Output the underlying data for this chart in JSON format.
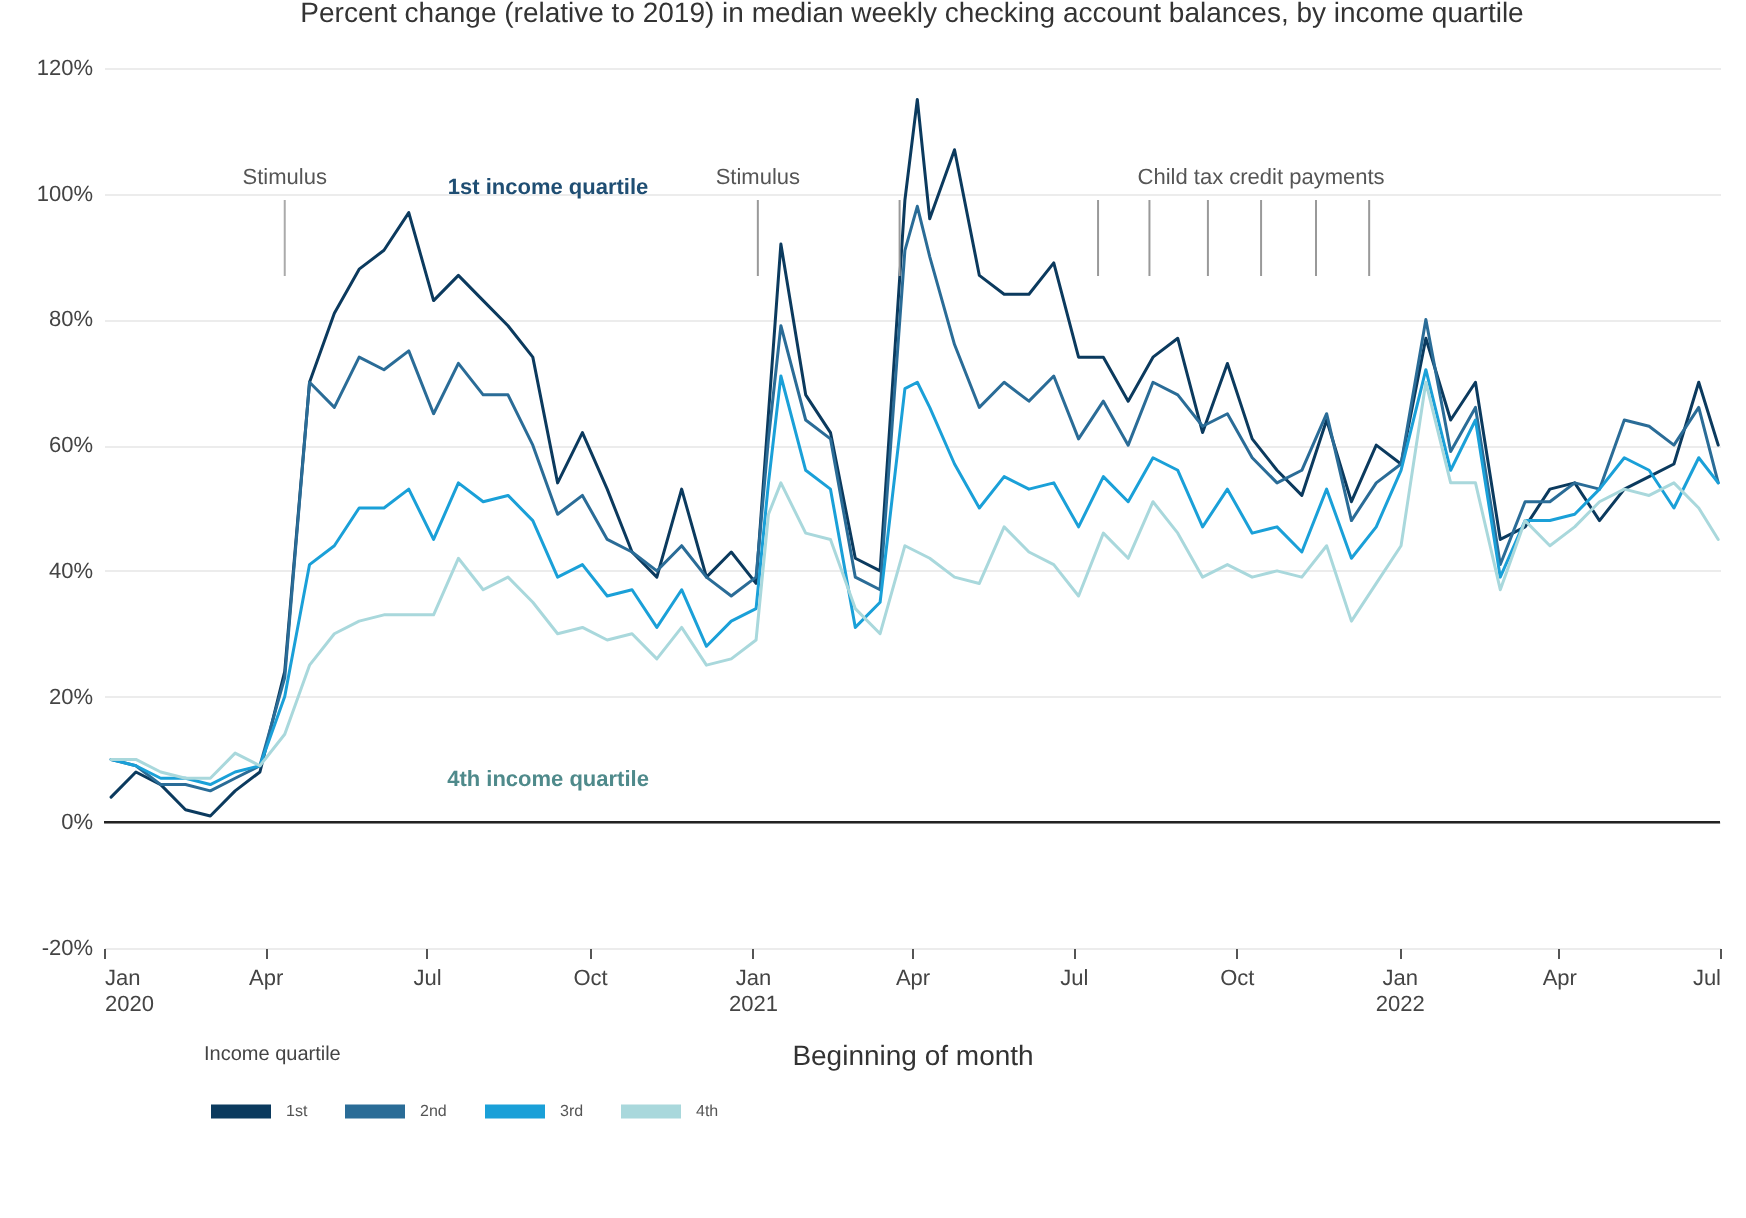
{
  "chart_data": {
    "type": "line",
    "title": "Percent change (relative to 2019) in median weekly checking account balances, by income quartile",
    "xlabel": "Beginning of month",
    "legend_title": "Income quartile",
    "legend": "bottom left",
    "grid": "y",
    "x": [
      "2020-01-05",
      "2020-01-19",
      "2020-02-02",
      "2020-02-16",
      "2020-03-01",
      "2020-03-15",
      "2020-03-29",
      "2020-04-12",
      "2020-04-26",
      "2020-05-10",
      "2020-05-24",
      "2020-06-07",
      "2020-06-21",
      "2020-07-05",
      "2020-07-19",
      "2020-08-02",
      "2020-08-16",
      "2020-08-30",
      "2020-09-13",
      "2020-09-27",
      "2020-10-11",
      "2020-10-25",
      "2020-11-08",
      "2020-11-22",
      "2020-12-06",
      "2020-12-20",
      "2021-01-03",
      "2021-01-10",
      "2021-01-17",
      "2021-01-31",
      "2021-02-14",
      "2021-02-28",
      "2021-03-14",
      "2021-03-28",
      "2021-04-04",
      "2021-04-11",
      "2021-04-25",
      "2021-05-09",
      "2021-05-23",
      "2021-06-06",
      "2021-06-20",
      "2021-07-04",
      "2021-07-18",
      "2021-08-01",
      "2021-08-15",
      "2021-08-29",
      "2021-09-12",
      "2021-09-26",
      "2021-10-10",
      "2021-10-24",
      "2021-11-07",
      "2021-11-21",
      "2021-12-05",
      "2021-12-19",
      "2022-01-02",
      "2022-01-16",
      "2022-01-30",
      "2022-02-13",
      "2022-02-27",
      "2022-03-13",
      "2022-03-27",
      "2022-04-10",
      "2022-04-24",
      "2022-05-08",
      "2022-05-22",
      "2022-06-05",
      "2022-06-19",
      "2022-06-30"
    ],
    "series": [
      {
        "name": "1st",
        "color": "#0b3a5e",
        "values": [
          4,
          8,
          6,
          2,
          1,
          5,
          8,
          24,
          70,
          81,
          88,
          91,
          97,
          83,
          87,
          83,
          79,
          74,
          54,
          62,
          53,
          43,
          39,
          53,
          39,
          43,
          38,
          65,
          92,
          68,
          62,
          42,
          40,
          99,
          115,
          96,
          107,
          87,
          84,
          84,
          89,
          74,
          74,
          67,
          74,
          77,
          62,
          73,
          61,
          56,
          52,
          64,
          51,
          60,
          57,
          77,
          64,
          70,
          45,
          47,
          53,
          54,
          48,
          53,
          55,
          57,
          70,
          60
        ]
      },
      {
        "name": "2nd",
        "color": "#2a6c97",
        "values": [
          10,
          9,
          6,
          6,
          5,
          7,
          9,
          23,
          70,
          66,
          74,
          72,
          75,
          65,
          73,
          68,
          68,
          60,
          49,
          52,
          45,
          43,
          40,
          44,
          39,
          36,
          39,
          61,
          79,
          64,
          61,
          39,
          37,
          91,
          98,
          90,
          76,
          66,
          70,
          67,
          71,
          61,
          67,
          60,
          70,
          68,
          63,
          65,
          58,
          54,
          56,
          65,
          48,
          54,
          57,
          80,
          59,
          66,
          41,
          51,
          51,
          54,
          53,
          64,
          63,
          60,
          66,
          54
        ]
      },
      {
        "name": "3rd",
        "color": "#1aa0d8",
        "values": [
          10,
          9,
          7,
          7,
          6,
          8,
          9,
          20,
          41,
          44,
          50,
          50,
          53,
          45,
          54,
          51,
          52,
          48,
          39,
          41,
          36,
          37,
          31,
          37,
          28,
          32,
          34,
          54,
          71,
          56,
          53,
          31,
          35,
          69,
          70,
          66,
          57,
          50,
          55,
          53,
          54,
          47,
          55,
          51,
          58,
          56,
          47,
          53,
          46,
          47,
          43,
          53,
          42,
          47,
          56,
          72,
          56,
          64,
          39,
          48,
          48,
          49,
          53,
          58,
          56,
          50,
          58,
          54
        ]
      },
      {
        "name": "4th",
        "color": "#a9d8dc",
        "values": [
          10,
          10,
          8,
          7,
          7,
          11,
          9,
          14,
          25,
          30,
          32,
          33,
          33,
          33,
          42,
          37,
          39,
          35,
          30,
          31,
          29,
          30,
          26,
          31,
          25,
          26,
          29,
          49,
          54,
          46,
          45,
          34,
          30,
          44,
          43,
          42,
          39,
          38,
          47,
          43,
          41,
          36,
          46,
          42,
          51,
          46,
          39,
          41,
          39,
          40,
          39,
          44,
          32,
          38,
          44,
          70,
          54,
          54,
          37,
          48,
          44,
          47,
          51,
          53,
          52,
          54,
          50,
          45
        ]
      }
    ],
    "xlim": [
      "2020-01-01",
      "2022-07-01"
    ],
    "xticks": [
      {
        "value": "2020-01-01",
        "label": "Jan 2020"
      },
      {
        "value": "2020-04-01",
        "label": "Apr"
      },
      {
        "value": "2020-07-01",
        "label": "Jul"
      },
      {
        "value": "2020-10-01",
        "label": "Oct"
      },
      {
        "value": "2021-01-01",
        "label": "Jan 2021"
      },
      {
        "value": "2021-04-01",
        "label": "Apr"
      },
      {
        "value": "2021-07-01",
        "label": "Jul"
      },
      {
        "value": "2021-10-01",
        "label": "Oct"
      },
      {
        "value": "2022-01-01",
        "label": "Jan 2022"
      },
      {
        "value": "2022-04-01",
        "label": "Apr"
      },
      {
        "value": "2022-07-01",
        "label": "Jul"
      }
    ],
    "ylim": [
      -20,
      120
    ],
    "yticks": [
      {
        "value": -20,
        "label": "-20%"
      },
      {
        "value": 0,
        "label": "0%"
      },
      {
        "value": 20,
        "label": "20%"
      },
      {
        "value": 40,
        "label": "40%"
      },
      {
        "value": 60,
        "label": "60%"
      },
      {
        "value": 80,
        "label": "80%"
      },
      {
        "value": 100,
        "label": "100%"
      },
      {
        "value": 120,
        "label": "120%"
      }
    ],
    "ref_lines": [
      {
        "axis": "y",
        "value": 0,
        "color": "#222222"
      },
      {
        "axis": "x",
        "value": "2020-04-12",
        "label": "Stimulus",
        "color": "#aaaaaa"
      },
      {
        "axis": "x",
        "value": "2021-01-04",
        "label": "Stimulus",
        "color": "#999999"
      },
      {
        "axis": "x",
        "value": "2021-03-25",
        "color": "#999999"
      },
      {
        "axis": "x",
        "value": "2021-07-15",
        "color": "#999999"
      },
      {
        "axis": "x",
        "value": "2021-08-13",
        "color": "#999999"
      },
      {
        "axis": "x",
        "value": "2021-09-15",
        "color": "#999999"
      },
      {
        "axis": "x",
        "value": "2021-10-15",
        "label": "Child tax credit payments",
        "color": "#999999"
      },
      {
        "axis": "x",
        "value": "2021-11-15",
        "color": "#999999"
      },
      {
        "axis": "x",
        "value": "2021-12-15",
        "color": "#999999"
      }
    ],
    "annotations": [
      "1st income quartile",
      "4th income quartile"
    ]
  }
}
